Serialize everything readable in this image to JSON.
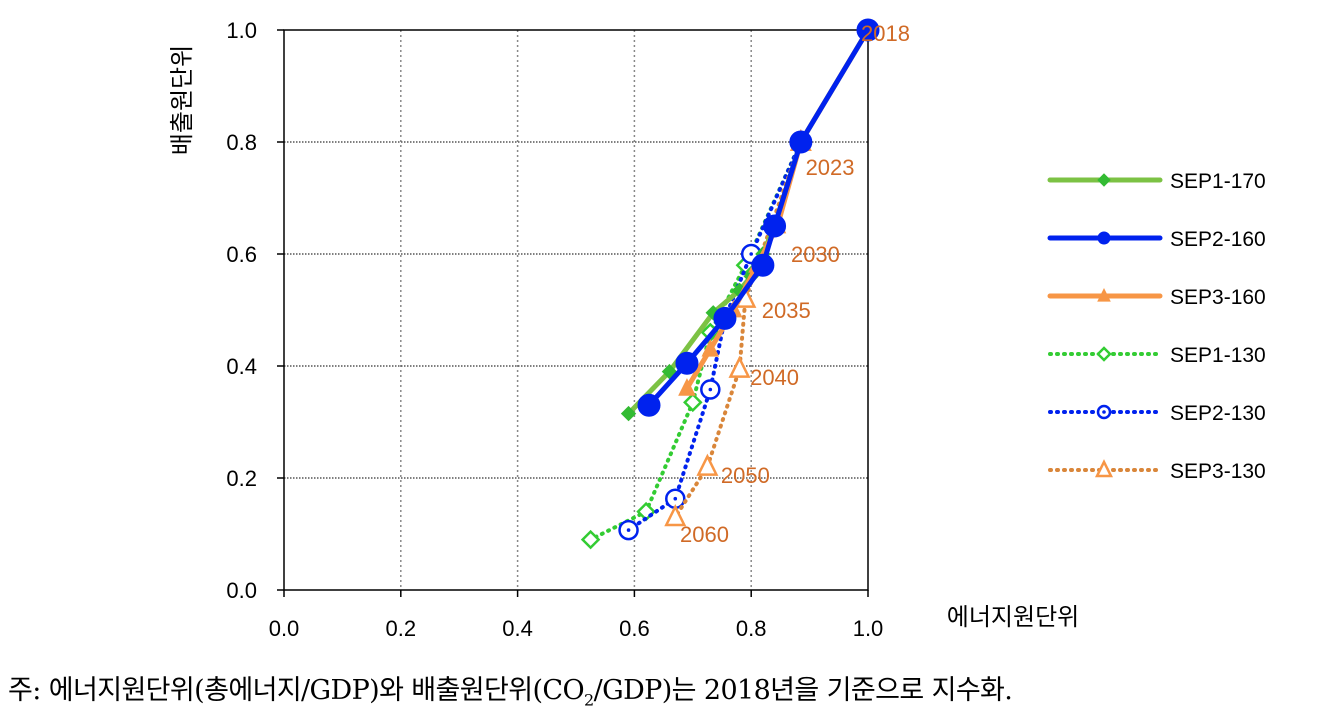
{
  "chart_data": {
    "type": "line",
    "xlabel": "에너지원단위",
    "ylabel": "배출원단위",
    "xlim": [
      0.0,
      1.0
    ],
    "ylim": [
      0.0,
      1.0
    ],
    "x_ticks": [
      "0.0",
      "0.2",
      "0.4",
      "0.6",
      "0.8",
      "1.0"
    ],
    "y_ticks": [
      "0.0",
      "0.2",
      "0.4",
      "0.6",
      "0.8",
      "1.0"
    ],
    "grid": "dotted, both axes",
    "legend_position": "right",
    "series": [
      {
        "name": "SEP1-170",
        "color": "#7cc244",
        "line": "solid",
        "marker": "filled-diamond",
        "marker_color": "#33bb33",
        "x": [
          1.0,
          0.885,
          0.84,
          0.82,
          0.8,
          0.78,
          0.735,
          0.66,
          0.59
        ],
        "y": [
          1.0,
          0.8,
          0.65,
          0.6,
          0.56,
          0.535,
          0.495,
          0.39,
          0.315
        ]
      },
      {
        "name": "SEP2-160",
        "color": "#0022ee",
        "line": "solid",
        "marker": "filled-circle",
        "marker_color": "#0022ee",
        "x": [
          1.0,
          0.885,
          0.84,
          0.82,
          0.755,
          0.69,
          0.625
        ],
        "y": [
          1.0,
          0.8,
          0.65,
          0.58,
          0.485,
          0.405,
          0.33
        ]
      },
      {
        "name": "SEP3-160",
        "color": "#f79646",
        "line": "solid",
        "marker": "filled-triangle",
        "marker_color": "#f79646",
        "x": [
          1.0,
          0.885,
          0.845,
          0.81,
          0.77,
          0.73,
          0.69
        ],
        "y": [
          1.0,
          0.8,
          0.65,
          0.58,
          0.5,
          0.43,
          0.36
        ]
      },
      {
        "name": "SEP1-130",
        "color": "#33cc33",
        "line": "dotted",
        "marker": "open-diamond",
        "marker_color": "#33cc33",
        "x": [
          1.0,
          0.885,
          0.79,
          0.73,
          0.7,
          0.62,
          0.525
        ],
        "y": [
          1.0,
          0.8,
          0.58,
          0.46,
          0.335,
          0.14,
          0.09
        ]
      },
      {
        "name": "SEP2-130",
        "color": "#0022ee",
        "line": "dotted",
        "marker": "open-circle",
        "marker_color": "#0022ee",
        "x": [
          1.0,
          0.885,
          0.8,
          0.755,
          0.73,
          0.67,
          0.59
        ],
        "y": [
          1.0,
          0.8,
          0.6,
          0.485,
          0.358,
          0.163,
          0.107
        ]
      },
      {
        "name": "SEP3-130",
        "color": "#d9863a",
        "line": "dotted",
        "marker": "open-triangle",
        "marker_color": "#f79646",
        "x": [
          1.0,
          0.885,
          0.79,
          0.78,
          0.725,
          0.67
        ],
        "y": [
          1.0,
          0.8,
          0.52,
          0.395,
          0.22,
          0.13
        ]
      }
    ],
    "annotations": [
      {
        "text": "2018",
        "x": 1.03,
        "y": 0.995
      },
      {
        "text": "2023",
        "x": 0.935,
        "y": 0.755
      },
      {
        "text": "2030",
        "x": 0.91,
        "y": 0.6
      },
      {
        "text": "2035",
        "x": 0.86,
        "y": 0.5
      },
      {
        "text": "2040",
        "x": 0.84,
        "y": 0.38
      },
      {
        "text": "2050",
        "x": 0.79,
        "y": 0.205
      },
      {
        "text": "2060",
        "x": 0.72,
        "y": 0.1
      }
    ]
  },
  "note": {
    "prefix": "주: 에너지원단위(총에너지/GDP)와 배출원단위(CO",
    "sub": "2",
    "suffix": "/GDP)는 2018년을 기준으로 지수화."
  }
}
